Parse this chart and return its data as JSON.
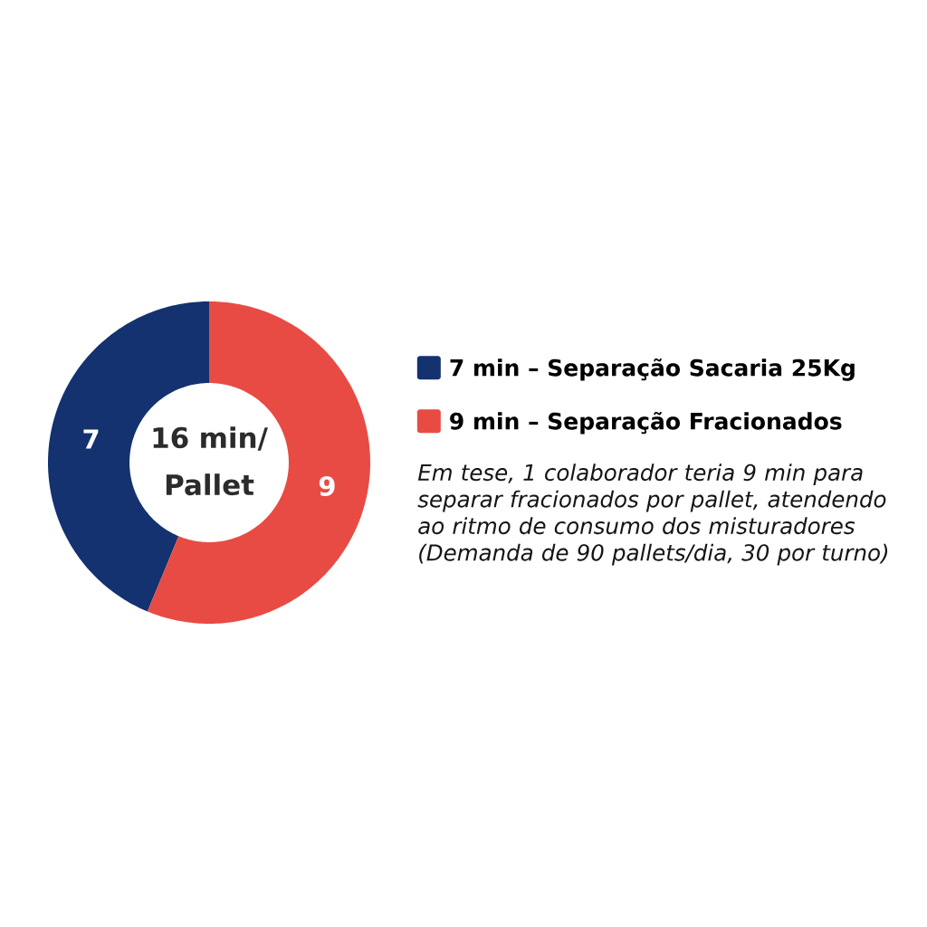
{
  "chart_data": {
    "type": "donut",
    "categories": [
      "7 min – Separação Sacaria 25Kg",
      "9 min – Separação Fracionados"
    ],
    "values": [
      7,
      9
    ],
    "colors": [
      "#13326f",
      "#e84b43"
    ],
    "data_labels": true,
    "legend": "right",
    "annotations": [
      "16 min/ Pallet",
      "Em tese, 1 colaborador teria 9 min para separar fracionados por pallet, atendendo ao ritmo de consumo dos misturadores (Demanda de 90 pallets/dia, 30 por turno)"
    ]
  }
}
